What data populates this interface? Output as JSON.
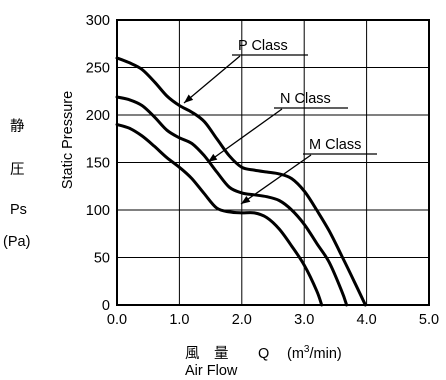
{
  "chart_data": {
    "type": "line",
    "xlabel_cjk": "風　量",
    "xlabel_symbol": "Q",
    "xlabel_unit_prefix": "(m",
    "xlabel_unit_sup": "3",
    "xlabel_unit_suffix": "/min)",
    "xlabel_en": "Air Flow",
    "ylabel_en": "Static Pressure",
    "ylabel_cjk_1": "静",
    "ylabel_cjk_2": "圧",
    "ylabel_symbol": "Ps",
    "ylabel_unit": "(Pa)",
    "xlim": [
      0,
      5
    ],
    "ylim": [
      0,
      300
    ],
    "xticks": [
      "0.0",
      "1.0",
      "2.0",
      "3.0",
      "4.0",
      "5.0"
    ],
    "yticks": [
      "0",
      "50",
      "100",
      "150",
      "200",
      "250",
      "300"
    ],
    "grid": true,
    "series": [
      {
        "name": "P Class",
        "points": [
          [
            0,
            260
          ],
          [
            0.2,
            255
          ],
          [
            0.4,
            248
          ],
          [
            0.6,
            235
          ],
          [
            0.8,
            220
          ],
          [
            1.0,
            210
          ],
          [
            1.2,
            203
          ],
          [
            1.4,
            193
          ],
          [
            1.6,
            175
          ],
          [
            1.8,
            157
          ],
          [
            2.0,
            145
          ],
          [
            2.2,
            142
          ],
          [
            2.4,
            140
          ],
          [
            2.6,
            138
          ],
          [
            2.8,
            133
          ],
          [
            3.0,
            120
          ],
          [
            3.2,
            100
          ],
          [
            3.4,
            78
          ],
          [
            3.6,
            52
          ],
          [
            3.8,
            25
          ],
          [
            3.98,
            0
          ]
        ]
      },
      {
        "name": "N Class",
        "points": [
          [
            0,
            219
          ],
          [
            0.2,
            216
          ],
          [
            0.4,
            210
          ],
          [
            0.6,
            198
          ],
          [
            0.8,
            184
          ],
          [
            1.0,
            176
          ],
          [
            1.2,
            170
          ],
          [
            1.4,
            157
          ],
          [
            1.6,
            140
          ],
          [
            1.8,
            124
          ],
          [
            2.0,
            118
          ],
          [
            2.2,
            116
          ],
          [
            2.4,
            114
          ],
          [
            2.6,
            110
          ],
          [
            2.8,
            100
          ],
          [
            3.0,
            85
          ],
          [
            3.2,
            65
          ],
          [
            3.4,
            45
          ],
          [
            3.6,
            15
          ],
          [
            3.68,
            0
          ]
        ]
      },
      {
        "name": "M Class",
        "points": [
          [
            0,
            190
          ],
          [
            0.2,
            186
          ],
          [
            0.4,
            178
          ],
          [
            0.6,
            167
          ],
          [
            0.8,
            155
          ],
          [
            1.0,
            145
          ],
          [
            1.2,
            133
          ],
          [
            1.4,
            117
          ],
          [
            1.6,
            102
          ],
          [
            1.8,
            98
          ],
          [
            2.0,
            97
          ],
          [
            2.2,
            97
          ],
          [
            2.4,
            92
          ],
          [
            2.6,
            80
          ],
          [
            2.8,
            62
          ],
          [
            3.0,
            42
          ],
          [
            3.2,
            15
          ],
          [
            3.28,
            0
          ]
        ]
      }
    ]
  }
}
